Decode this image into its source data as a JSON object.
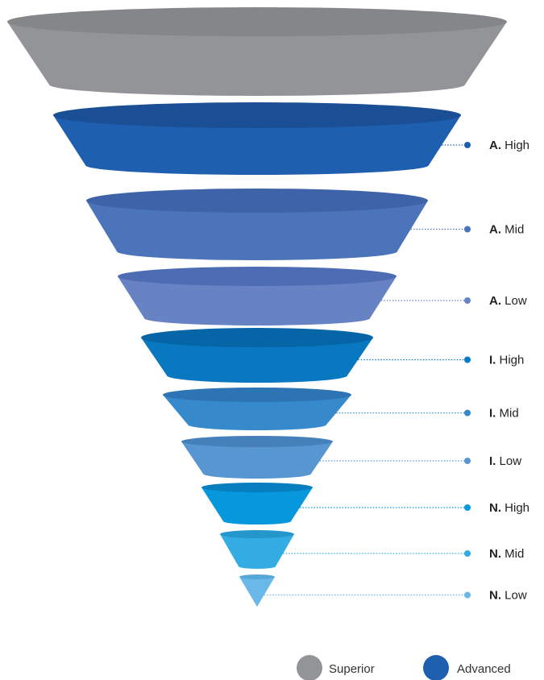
{
  "funnel": {
    "top_level": {
      "key": "superior",
      "color": "#939497",
      "top_color": "#858689"
    },
    "levels": [
      {
        "key": "a-high",
        "prefix": "A.",
        "label": "High",
        "color": "#1f5fb0",
        "top_color": "#1a4f96"
      },
      {
        "key": "a-mid",
        "prefix": "A.",
        "label": "Mid",
        "color": "#4c74ba",
        "top_color": "#3f63a8"
      },
      {
        "key": "a-low",
        "prefix": "A.",
        "label": "Low",
        "color": "#6883c4",
        "top_color": "#4e6cb3"
      },
      {
        "key": "i-high",
        "prefix": "I.",
        "label": "High",
        "color": "#0878c1",
        "top_color": "#0565a6"
      },
      {
        "key": "i-mid",
        "prefix": "I.",
        "label": "Mid",
        "color": "#3689cb",
        "top_color": "#2c74b3"
      },
      {
        "key": "i-low",
        "prefix": "I.",
        "label": "Low",
        "color": "#5796d0",
        "top_color": "#4580bb"
      },
      {
        "key": "n-high",
        "prefix": "N.",
        "label": "High",
        "color": "#0697dd",
        "top_color": "#077fbf"
      },
      {
        "key": "n-mid",
        "prefix": "N.",
        "label": "Mid",
        "color": "#33ace3",
        "top_color": "#2496cc"
      },
      {
        "key": "n-low",
        "prefix": "N.",
        "label": "Low",
        "color": "#6ab8e7",
        "top_color": "#56a6d8"
      }
    ]
  },
  "legend": [
    {
      "label": "Superior",
      "color": "#939497"
    },
    {
      "label": "Advanced",
      "color": "#1f5fb0"
    }
  ]
}
